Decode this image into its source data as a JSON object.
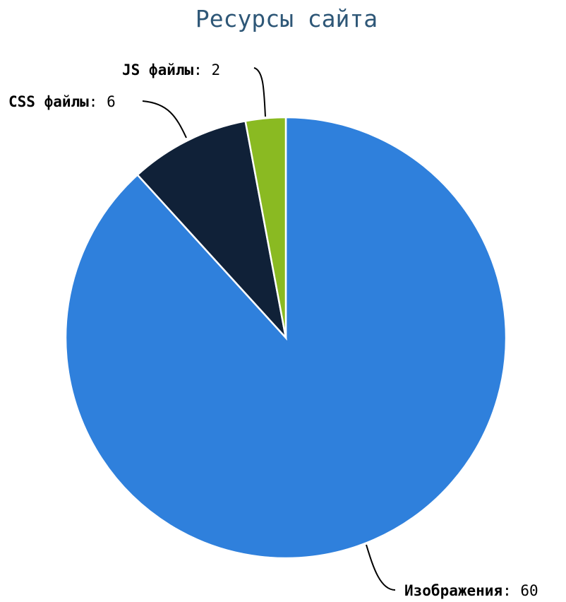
{
  "chart_data": {
    "type": "pie",
    "title": "Ресурсы сайта",
    "title_color": "#2e5777",
    "separator": ": ",
    "slices": [
      {
        "label": "Изображения",
        "value": 60,
        "color": "#2f80dc"
      },
      {
        "label": "CSS файлы",
        "value": 6,
        "color": "#102138"
      },
      {
        "label": "JS файлы",
        "value": 2,
        "color": "#8aba22"
      }
    ],
    "legend": "none"
  }
}
